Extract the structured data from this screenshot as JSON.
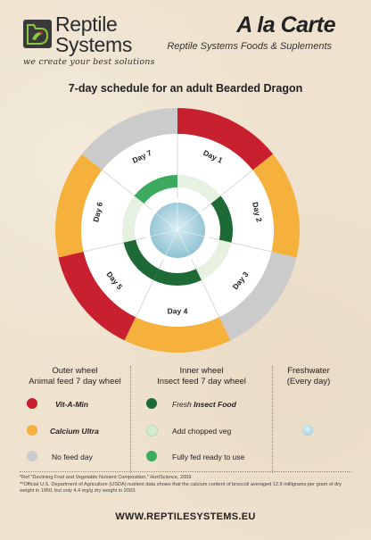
{
  "header": {
    "brand_line1": "Reptile",
    "brand_line2": "Systems",
    "tagline": "we create your best solutions",
    "product_title": "A la Carte",
    "product_subtitle": "Reptile Systems Foods & Suplements"
  },
  "title": "7-day schedule for an adult Bearded Dragon",
  "colors": {
    "vit_a_min": "#c8202e",
    "calcium_ultra": "#f5b13c",
    "no_feed": "#cbcbcb",
    "insect_food": "#1d6a37",
    "chopped_veg": "#d4ead1",
    "fully_fed": "#3daa5f",
    "freshwater": "#a9d4e2"
  },
  "wheel": {
    "days": [
      "Day 1",
      "Day 2",
      "Day 3",
      "Day 4",
      "Day 5",
      "Day 6",
      "Day 7"
    ],
    "outer": [
      "vit_a_min",
      "calcium_ultra",
      "no_feed",
      "calcium_ultra",
      "vit_a_min",
      "calcium_ultra",
      "no_feed"
    ],
    "inner": [
      "chopped_veg",
      "insect_food",
      "chopped_veg",
      "insect_food",
      "insect_food",
      "chopped_veg",
      "fully_fed"
    ]
  },
  "legend": {
    "outer_heading_1": "Outer wheel",
    "outer_heading_2": "Animal feed 7 day wheel",
    "inner_heading_1": "Inner wheel",
    "inner_heading_2": "Insect feed 7 day wheel",
    "fresh_heading_1": "Freshwater",
    "fresh_heading_2": "(Every day)",
    "vit_a_min": "Vit-A-Min",
    "calcium_ultra": "Calcium Ultra",
    "no_feed": "No feed day",
    "fresh_prefix": "Fresh",
    "insect_food": "Insect Food",
    "chopped_veg": "Add chopped veg",
    "fully_fed": "Fully fed ready to use"
  },
  "footnotes": {
    "fn1": "*Ref \"Declining Fruit and Vegetable Nutrient Composition,\" HortScience, 2009",
    "fn2": "**Official U.S. Department of Agriculture (USDA) nutrient data shows that the calcium content of broccoli averaged 12.9 milligrams per gram of dry weight in 1950, but only 4.4 mg/g dry weight in 2003."
  },
  "url": "WWW.REPTILESYSTEMS.EU"
}
